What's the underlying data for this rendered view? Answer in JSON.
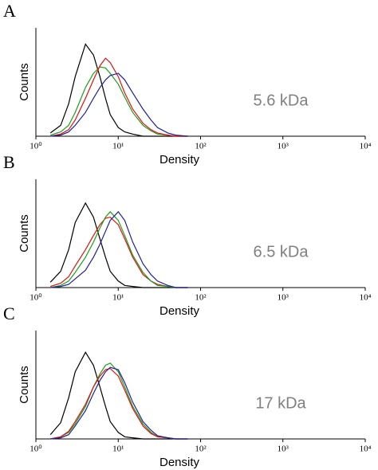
{
  "chart_data": [
    {
      "type": "line",
      "panel": "A",
      "annotation": "5.6 kDa",
      "xlabel": "Density",
      "ylabel": "Counts",
      "xscale": "log",
      "xlim": [
        1,
        10000
      ],
      "ylim": [
        0,
        100
      ],
      "xticks": [
        {
          "value": 1,
          "label": "10⁰"
        },
        {
          "value": 10,
          "label": "10¹"
        },
        {
          "value": 100,
          "label": "10²"
        },
        {
          "value": 1000,
          "label": "10³"
        },
        {
          "value": 10000,
          "label": "10⁴"
        }
      ],
      "x": [
        1.5,
        2,
        2.5,
        3,
        4,
        5,
        6,
        7,
        8,
        10,
        12,
        15,
        20,
        25,
        30,
        40,
        50,
        70
      ],
      "series": [
        {
          "color": "#000000",
          "values": [
            3,
            10,
            30,
            55,
            85,
            75,
            55,
            35,
            20,
            8,
            4,
            2,
            0,
            0,
            0,
            0,
            0,
            0
          ]
        },
        {
          "color": "#1aa01a",
          "values": [
            1,
            4,
            10,
            22,
            45,
            58,
            64,
            63,
            58,
            48,
            36,
            22,
            10,
            5,
            2,
            1,
            0,
            0
          ]
        },
        {
          "color": "#e01010",
          "values": [
            0,
            2,
            6,
            15,
            35,
            52,
            65,
            72,
            68,
            55,
            40,
            25,
            12,
            6,
            3,
            1,
            0,
            0
          ]
        },
        {
          "color": "#20209a",
          "values": [
            0,
            1,
            4,
            10,
            22,
            35,
            45,
            52,
            56,
            58,
            52,
            40,
            25,
            15,
            8,
            3,
            1,
            0
          ]
        }
      ]
    },
    {
      "type": "line",
      "panel": "B",
      "annotation": "6.5 kDa",
      "xlabel": "Density",
      "ylabel": "Counts",
      "xscale": "log",
      "xlim": [
        1,
        10000
      ],
      "ylim": [
        0,
        100
      ],
      "xticks": [
        {
          "value": 1,
          "label": "10⁰"
        },
        {
          "value": 10,
          "label": "10¹"
        },
        {
          "value": 100,
          "label": "10²"
        },
        {
          "value": 1000,
          "label": "10³"
        },
        {
          "value": 10000,
          "label": "10⁴"
        }
      ],
      "x": [
        1.5,
        2,
        2.5,
        3,
        4,
        5,
        6,
        7,
        8,
        10,
        12,
        15,
        20,
        25,
        30,
        40,
        50,
        70
      ],
      "series": [
        {
          "color": "#000000",
          "values": [
            5,
            15,
            35,
            60,
            78,
            65,
            45,
            28,
            15,
            6,
            2,
            1,
            0,
            0,
            0,
            0,
            0,
            0
          ]
        },
        {
          "color": "#e01010",
          "values": [
            1,
            4,
            10,
            20,
            35,
            48,
            58,
            64,
            65,
            58,
            45,
            28,
            12,
            6,
            3,
            1,
            0,
            0
          ]
        },
        {
          "color": "#1aa01a",
          "values": [
            0,
            2,
            6,
            14,
            28,
            42,
            55,
            65,
            70,
            62,
            48,
            30,
            14,
            6,
            2,
            1,
            0,
            0
          ]
        },
        {
          "color": "#20209a",
          "values": [
            0,
            1,
            3,
            8,
            16,
            28,
            40,
            52,
            62,
            70,
            62,
            42,
            22,
            12,
            6,
            2,
            0,
            0
          ]
        }
      ]
    },
    {
      "type": "line",
      "panel": "C",
      "annotation": "17 kDa",
      "xlabel": "Density",
      "ylabel": "Counts",
      "xscale": "log",
      "xlim": [
        1,
        10000
      ],
      "ylim": [
        0,
        100
      ],
      "xticks": [
        {
          "value": 1,
          "label": "10⁰"
        },
        {
          "value": 10,
          "label": "10¹"
        },
        {
          "value": 100,
          "label": "10²"
        },
        {
          "value": 1000,
          "label": "10³"
        },
        {
          "value": 10000,
          "label": "10⁴"
        }
      ],
      "x": [
        1.5,
        2,
        2.5,
        3,
        4,
        5,
        6,
        7,
        8,
        10,
        12,
        15,
        20,
        25,
        30,
        40,
        50,
        70
      ],
      "series": [
        {
          "color": "#000000",
          "values": [
            4,
            15,
            38,
            62,
            80,
            68,
            48,
            30,
            16,
            6,
            2,
            1,
            0,
            0,
            0,
            0,
            0,
            0
          ]
        },
        {
          "color": "#1aa01a",
          "values": [
            0,
            2,
            6,
            14,
            30,
            48,
            60,
            68,
            70,
            62,
            48,
            30,
            14,
            6,
            2,
            1,
            0,
            0
          ]
        },
        {
          "color": "#e01010",
          "values": [
            0,
            2,
            7,
            16,
            32,
            48,
            58,
            64,
            65,
            58,
            45,
            28,
            12,
            5,
            2,
            1,
            0,
            0
          ]
        },
        {
          "color": "#20209a",
          "values": [
            0,
            1,
            4,
            12,
            26,
            42,
            54,
            62,
            66,
            64,
            52,
            34,
            16,
            8,
            3,
            1,
            0,
            0
          ]
        }
      ]
    }
  ]
}
